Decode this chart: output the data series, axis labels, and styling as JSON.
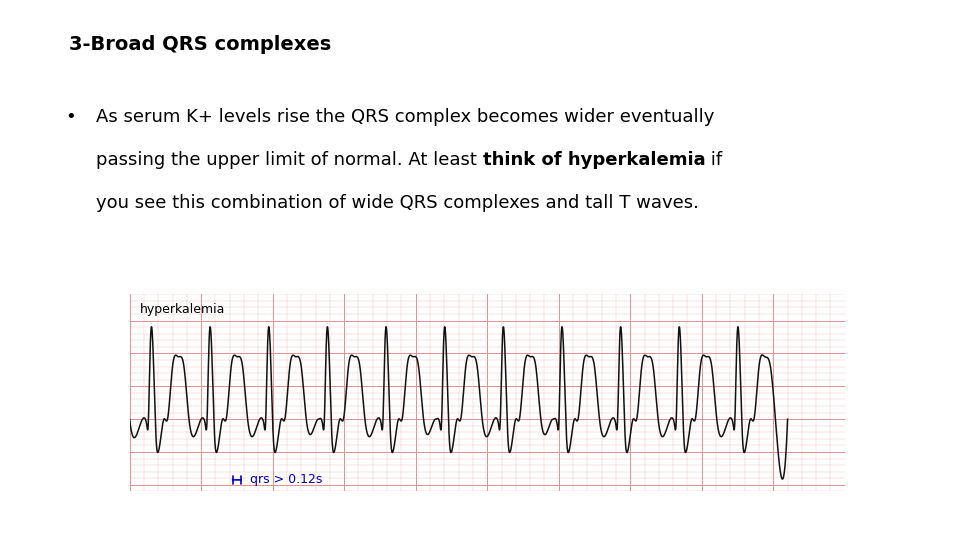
{
  "title": "3-Broad QRS complexes",
  "line1": "As serum K+ levels rise the QRS complex becomes wider eventually",
  "line2_pre": "passing the upper limit of normal. At least ",
  "line2_bold": "think of hyperkalemia",
  "line2_post": " if",
  "line3": "you see this combination of wide QRS complexes and tall T waves.",
  "ecg_label": "hyperkalemia",
  "ecg_annotation": "qrs > 0.12s",
  "bg_color": "#ffffff",
  "ecg_bg_color": "#fceaea",
  "ecg_grid_minor_color": "#f0c0c0",
  "ecg_grid_major_color": "#e09090",
  "ecg_line_color": "#111111",
  "ecg_border_color": "#c09090",
  "annotation_color": "#0000bb",
  "title_fontsize": 14,
  "body_fontsize": 13,
  "ecg_label_fontsize": 9,
  "ann_fontsize": 9
}
